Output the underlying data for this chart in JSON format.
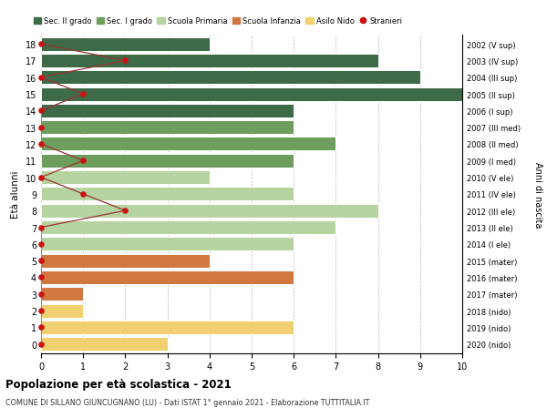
{
  "ages": [
    18,
    17,
    16,
    15,
    14,
    13,
    12,
    11,
    10,
    9,
    8,
    7,
    6,
    5,
    4,
    3,
    2,
    1,
    0
  ],
  "years": [
    "2002 (V sup)",
    "2003 (IV sup)",
    "2004 (III sup)",
    "2005 (II sup)",
    "2006 (I sup)",
    "2007 (III med)",
    "2008 (II med)",
    "2009 (I med)",
    "2010 (V ele)",
    "2011 (IV ele)",
    "2012 (III ele)",
    "2013 (II ele)",
    "2014 (I ele)",
    "2015 (mater)",
    "2016 (mater)",
    "2017 (mater)",
    "2018 (nido)",
    "2019 (nido)",
    "2020 (nido)"
  ],
  "bar_values": [
    4,
    8,
    9,
    10,
    6,
    6,
    7,
    6,
    4,
    6,
    8,
    7,
    6,
    4,
    6,
    1,
    1,
    6,
    3
  ],
  "stranieri": [
    0,
    2,
    0,
    1,
    0,
    0,
    0,
    1,
    0,
    1,
    2,
    0,
    0,
    0,
    0,
    0,
    0,
    0,
    0
  ],
  "bar_colors": [
    "#3d6b47",
    "#3d6b47",
    "#3d6b47",
    "#3d6b47",
    "#3d6b47",
    "#6e9e5e",
    "#6e9e5e",
    "#6e9e5e",
    "#b5d4a0",
    "#b5d4a0",
    "#b5d4a0",
    "#b5d4a0",
    "#b5d4a0",
    "#d07840",
    "#d07840",
    "#d07840",
    "#f0d070",
    "#f0d070",
    "#f0d070"
  ],
  "legend_labels": [
    "Sec. II grado",
    "Sec. I grado",
    "Scuola Primaria",
    "Scuola Infanzia",
    "Asilo Nido",
    "Stranieri"
  ],
  "legend_colors": [
    "#3d6b47",
    "#6e9e5e",
    "#b5d4a0",
    "#d07840",
    "#f0d070",
    "#cc1111"
  ],
  "stranieri_color": "#cc1111",
  "stranieri_line_color": "#993333",
  "ylabel_left": "Età alunni",
  "ylabel_right": "Anni di nascita",
  "title": "Popolazione per età scolastica - 2021",
  "subtitle": "COMUNE DI SILLANO GIUNCUGNANO (LU) - Dati ISTAT 1° gennaio 2021 - Elaborazione TUTTITALIA.IT",
  "xlim": [
    0,
    10
  ],
  "xticks": [
    0,
    1,
    2,
    3,
    4,
    5,
    6,
    7,
    8,
    9,
    10
  ],
  "background_color": "#ffffff",
  "grid_color": "#bbbbbb"
}
